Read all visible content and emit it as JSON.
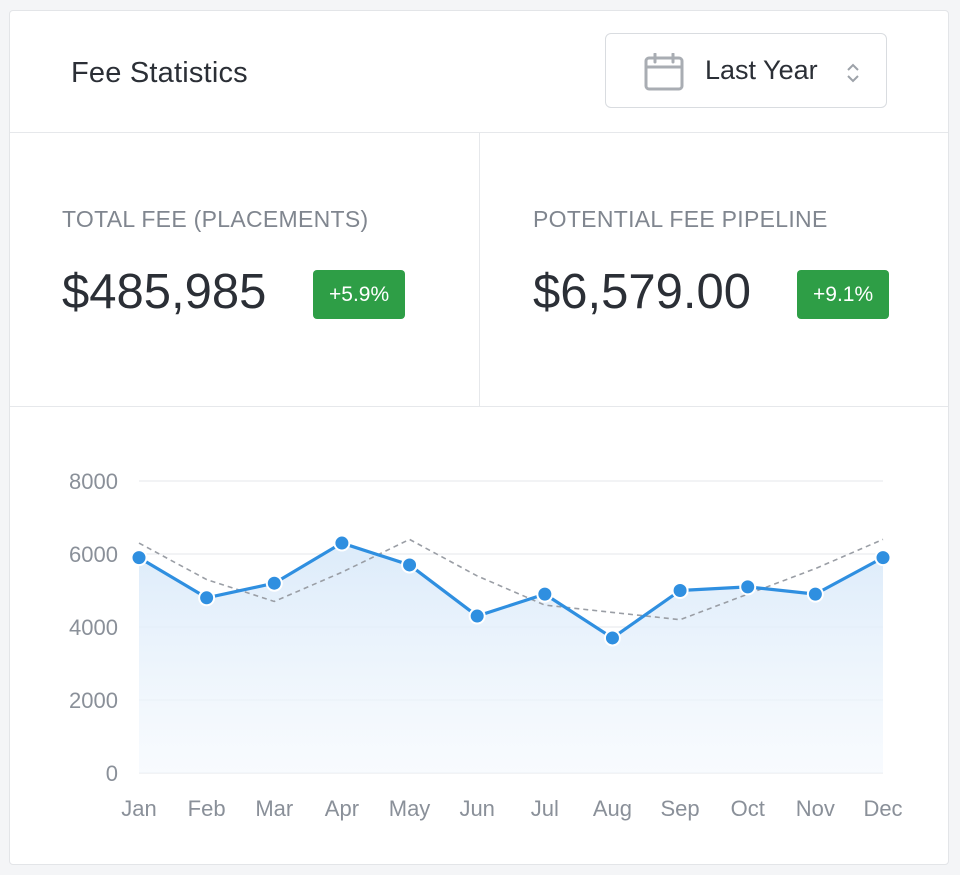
{
  "header": {
    "title": "Fee Statistics",
    "period_select": {
      "label": "Last Year",
      "icon": "calendar-icon",
      "indicator_icon": "up-down-chevron-icon"
    }
  },
  "stats": [
    {
      "label": "TOTAL FEE (PLACEMENTS)",
      "value": "$485,985",
      "change": "+5.9%"
    },
    {
      "label": "POTENTIAL FEE PIPELINE",
      "value": "$6,579.00",
      "change": "+9.1%"
    }
  ],
  "colors": {
    "badge_green": "#2e9e46",
    "series_line": "#2f8fe0",
    "area_fill_top": "#dcebfa",
    "dashed_line": "#9a9ea5",
    "grid": "#e4e7eb",
    "tick_text": "#8a9099"
  },
  "chart_data": {
    "type": "line",
    "categories": [
      "Jan",
      "Feb",
      "Mar",
      "Apr",
      "May",
      "Jun",
      "Jul",
      "Aug",
      "Sep",
      "Oct",
      "Nov",
      "Dec"
    ],
    "series": [
      {
        "values": [
          5900,
          4800,
          5200,
          6300,
          5700,
          4300,
          4900,
          3700,
          5000,
          5100,
          4900,
          5900
        ],
        "style": "solid-area",
        "markers": true
      },
      {
        "values": [
          6300,
          5300,
          4700,
          5500,
          6400,
          5400,
          4600,
          4400,
          4200,
          4900,
          5600,
          6400
        ],
        "style": "dashed",
        "markers": false
      }
    ],
    "yticks": [
      "0",
      "2000",
      "4000",
      "6000",
      "8000"
    ],
    "ylim": [
      0,
      8000
    ],
    "grid": true
  }
}
